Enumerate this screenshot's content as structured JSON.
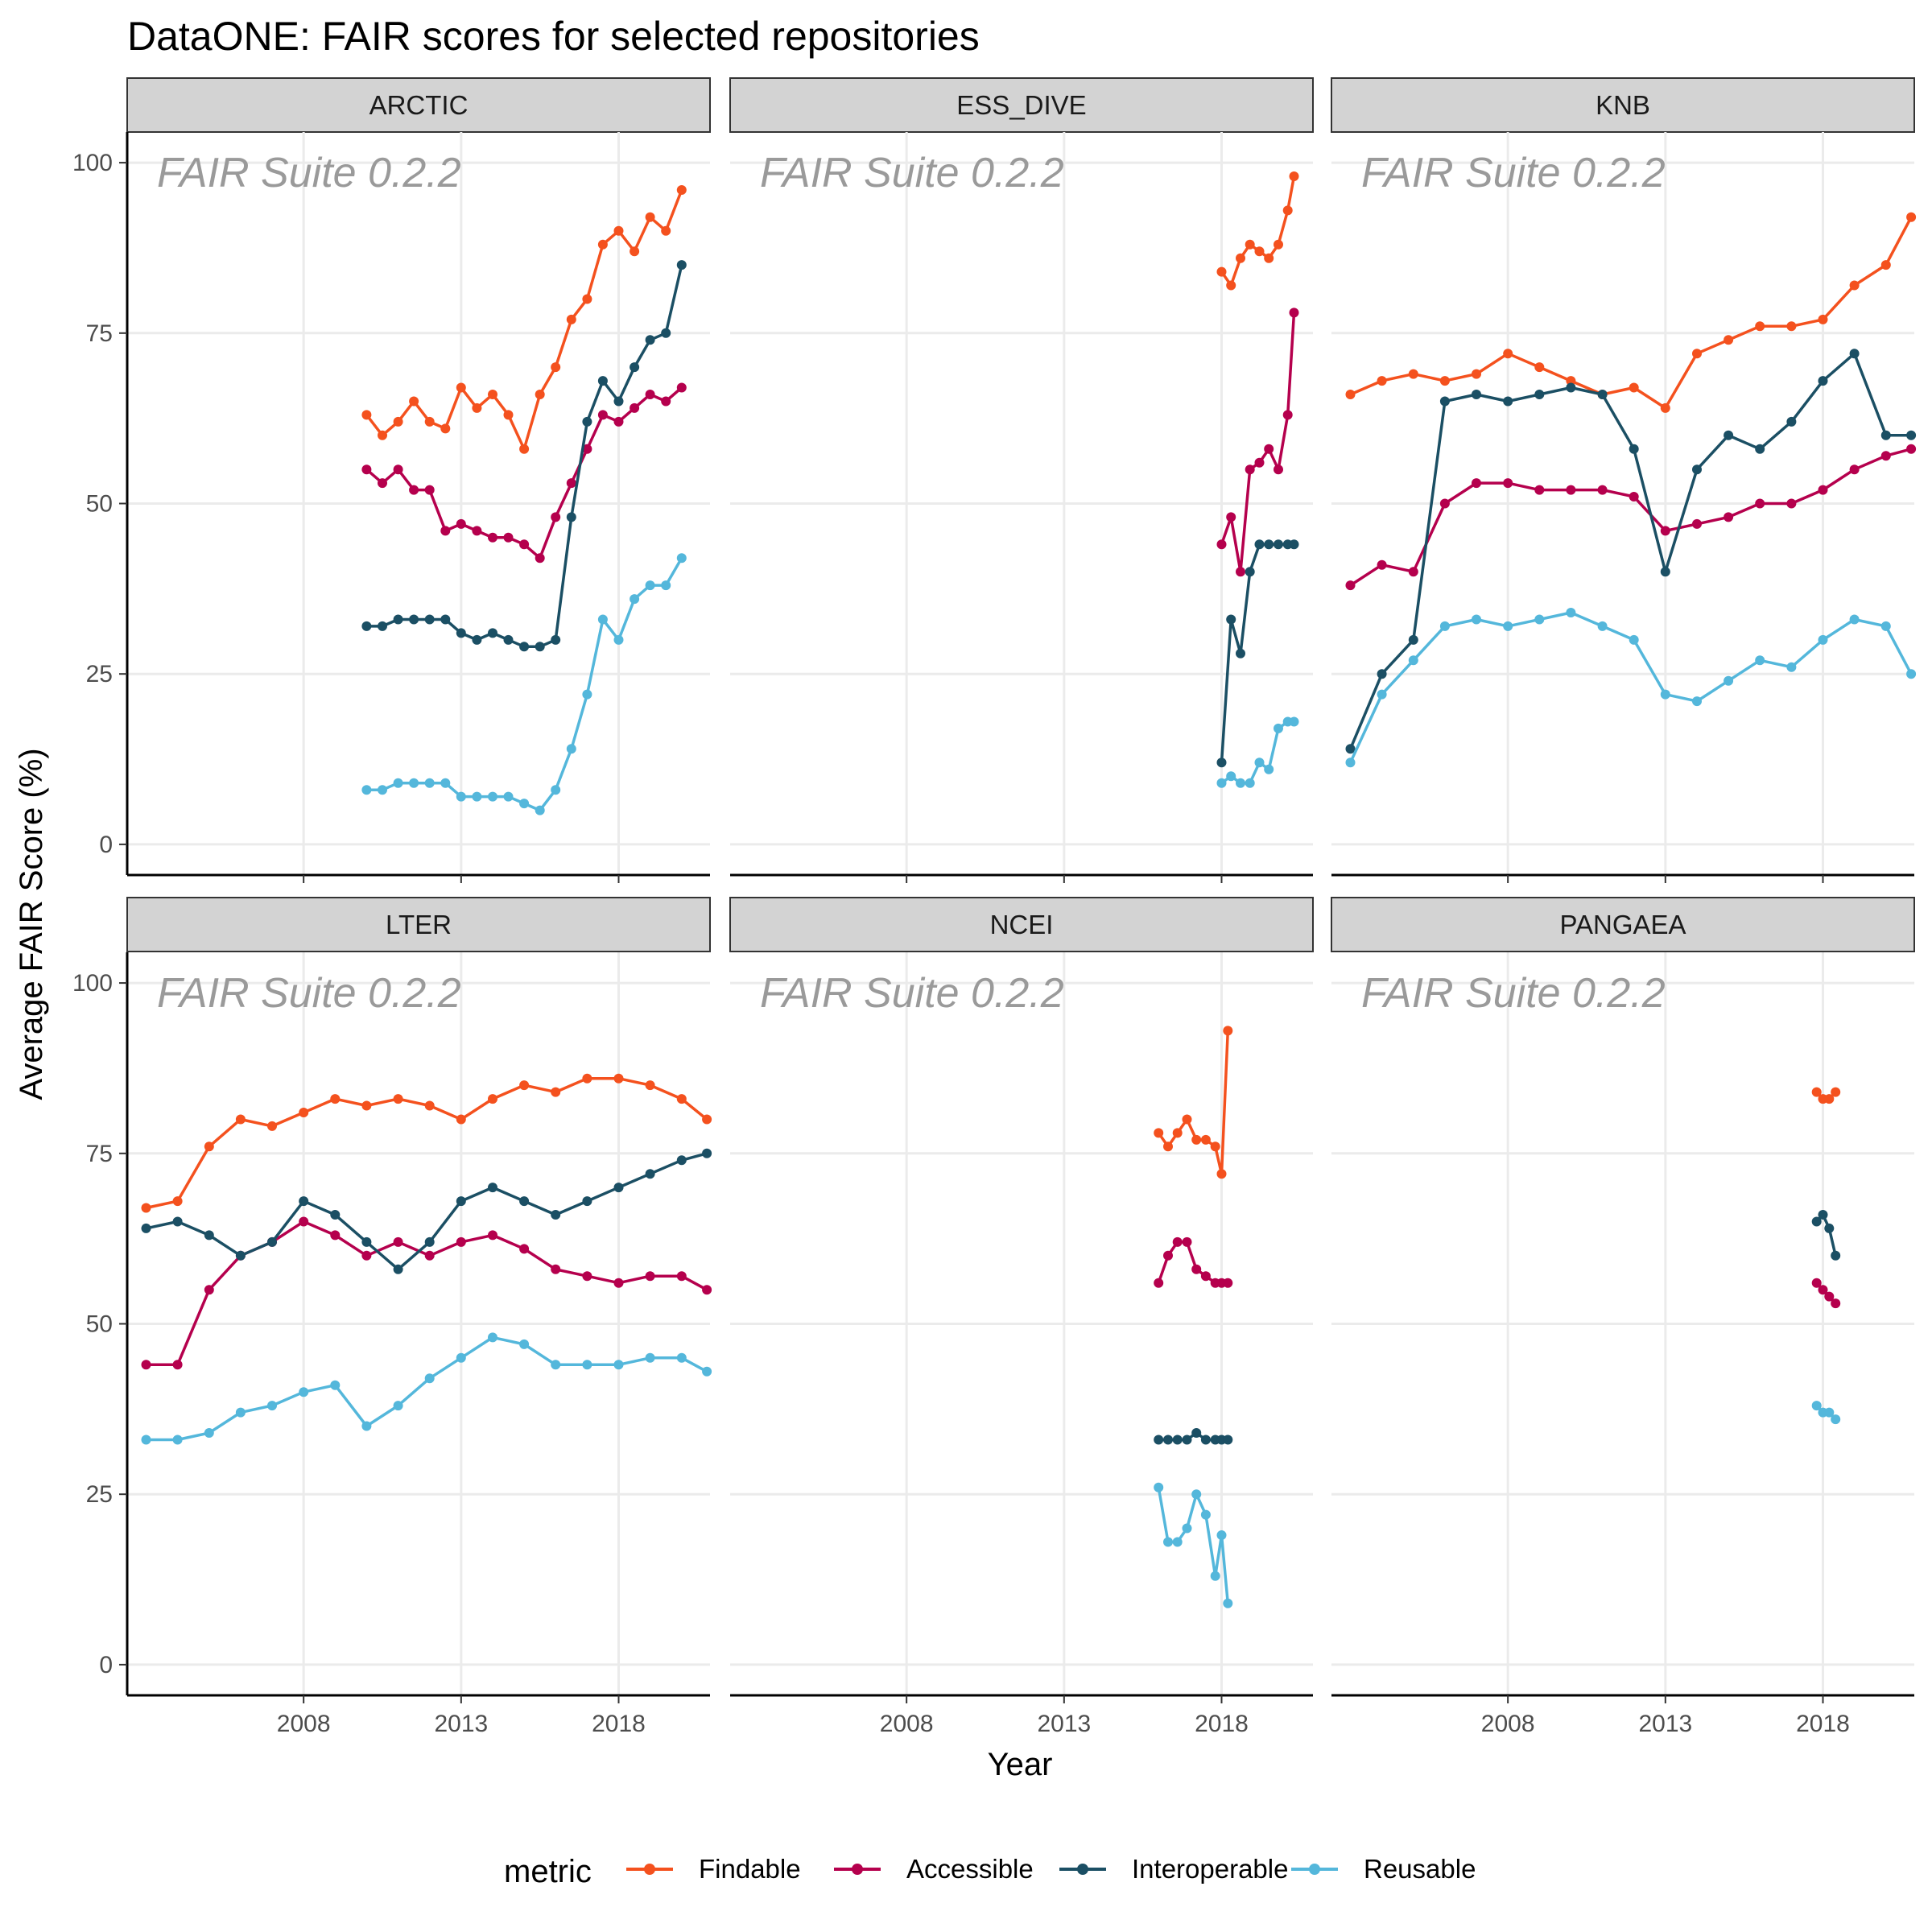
{
  "chart_data": {
    "type": "line",
    "title": "DataONE: FAIR scores for selected repositories",
    "xlabel": "Year",
    "ylabel": "Average FAIR Score (%)",
    "watermark": "FAIR Suite 0.2.2",
    "xlim": [
      2002.4,
      2020.9
    ],
    "ylim": [
      -4.5,
      104.5
    ],
    "x_ticks": [
      2008,
      2013,
      2018
    ],
    "x_tick_labels": [
      "2008",
      "2013",
      "2018"
    ],
    "y_ticks": [
      0,
      25,
      50,
      75,
      100
    ],
    "y_tick_labels": [
      "0",
      "25",
      "50",
      "75",
      "100"
    ],
    "grid": true,
    "markers": true,
    "legend": {
      "title": "metric",
      "position": "bottom",
      "entries": [
        "Findable",
        "Accessible",
        "Interoperable",
        "Reusable"
      ]
    },
    "metric_colors": {
      "Findable": "#f4511e",
      "Accessible": "#b5004d",
      "Interoperable": "#1b4f64",
      "Reusable": "#54b7db"
    },
    "panels": [
      {
        "name": "ARCTIC",
        "series": [
          {
            "name": "Findable",
            "x": [
              2010.0,
              2010.5,
              2011.0,
              2011.5,
              2012.0,
              2012.5,
              2013.0,
              2013.5,
              2014.0,
              2014.5,
              2015.0,
              2015.5,
              2016.0,
              2016.5,
              2017.0,
              2017.5,
              2018.0,
              2018.5,
              2019.0,
              2019.5,
              2020.0
            ],
            "y": [
              63,
              60,
              62,
              65,
              62,
              61,
              67,
              64,
              66,
              63,
              58,
              66,
              70,
              77,
              80,
              88,
              90,
              87,
              92,
              90,
              96
            ]
          },
          {
            "name": "Accessible",
            "x": [
              2010.0,
              2010.5,
              2011.0,
              2011.5,
              2012.0,
              2012.5,
              2013.0,
              2013.5,
              2014.0,
              2014.5,
              2015.0,
              2015.5,
              2016.0,
              2016.5,
              2017.0,
              2017.5,
              2018.0,
              2018.5,
              2019.0,
              2019.5,
              2020.0
            ],
            "y": [
              55,
              53,
              55,
              52,
              52,
              46,
              47,
              46,
              45,
              45,
              44,
              42,
              48,
              53,
              58,
              63,
              62,
              64,
              66,
              65,
              67
            ]
          },
          {
            "name": "Interoperable",
            "x": [
              2010.0,
              2010.5,
              2011.0,
              2011.5,
              2012.0,
              2012.5,
              2013.0,
              2013.5,
              2014.0,
              2014.5,
              2015.0,
              2015.5,
              2016.0,
              2016.5,
              2017.0,
              2017.5,
              2018.0,
              2018.5,
              2019.0,
              2019.5,
              2020.0
            ],
            "y": [
              32,
              32,
              33,
              33,
              33,
              33,
              31,
              30,
              31,
              30,
              29,
              29,
              30,
              48,
              62,
              68,
              65,
              70,
              74,
              75,
              85
            ]
          },
          {
            "name": "Reusable",
            "x": [
              2010.0,
              2010.5,
              2011.0,
              2011.5,
              2012.0,
              2012.5,
              2013.0,
              2013.5,
              2014.0,
              2014.5,
              2015.0,
              2015.5,
              2016.0,
              2016.5,
              2017.0,
              2017.5,
              2018.0,
              2018.5,
              2019.0,
              2019.5,
              2020.0
            ],
            "y": [
              8,
              8,
              9,
              9,
              9,
              9,
              7,
              7,
              7,
              7,
              6,
              5,
              8,
              14,
              22,
              33,
              30,
              36,
              38,
              38,
              42
            ]
          }
        ]
      },
      {
        "name": "ESS_DIVE",
        "series": [
          {
            "name": "Findable",
            "x": [
              2018.0,
              2018.3,
              2018.6,
              2018.9,
              2019.2,
              2019.5,
              2019.8,
              2020.1,
              2020.3
            ],
            "y": [
              84,
              82,
              86,
              88,
              87,
              86,
              88,
              93,
              98
            ]
          },
          {
            "name": "Accessible",
            "x": [
              2018.0,
              2018.3,
              2018.6,
              2018.9,
              2019.2,
              2019.5,
              2019.8,
              2020.1,
              2020.3
            ],
            "y": [
              44,
              48,
              40,
              55,
              56,
              58,
              55,
              63,
              78
            ]
          },
          {
            "name": "Interoperable",
            "x": [
              2018.0,
              2018.3,
              2018.6,
              2018.9,
              2019.2,
              2019.5,
              2019.8,
              2020.1,
              2020.3
            ],
            "y": [
              12,
              33,
              28,
              40,
              44,
              44,
              44,
              44,
              44
            ]
          },
          {
            "name": "Reusable",
            "x": [
              2018.0,
              2018.3,
              2018.6,
              2018.9,
              2019.2,
              2019.5,
              2019.8,
              2020.1,
              2020.3
            ],
            "y": [
              9,
              10,
              9,
              9,
              12,
              11,
              17,
              18,
              18
            ]
          }
        ]
      },
      {
        "name": "KNB",
        "series": [
          {
            "name": "Findable",
            "x": [
              2003.0,
              2004.0,
              2005.0,
              2006.0,
              2007.0,
              2008.0,
              2009.0,
              2010.0,
              2011.0,
              2012.0,
              2013.0,
              2014.0,
              2015.0,
              2016.0,
              2017.0,
              2018.0,
              2019.0,
              2020.0,
              2020.8
            ],
            "y": [
              66,
              68,
              69,
              68,
              69,
              72,
              70,
              68,
              66,
              67,
              64,
              72,
              74,
              76,
              76,
              77,
              82,
              85,
              92
            ]
          },
          {
            "name": "Accessible",
            "x": [
              2003.0,
              2004.0,
              2005.0,
              2006.0,
              2007.0,
              2008.0,
              2009.0,
              2010.0,
              2011.0,
              2012.0,
              2013.0,
              2014.0,
              2015.0,
              2016.0,
              2017.0,
              2018.0,
              2019.0,
              2020.0,
              2020.8
            ],
            "y": [
              38,
              41,
              40,
              50,
              53,
              53,
              52,
              52,
              52,
              51,
              46,
              47,
              48,
              50,
              50,
              52,
              55,
              57,
              58
            ]
          },
          {
            "name": "Interoperable",
            "x": [
              2003.0,
              2004.0,
              2005.0,
              2006.0,
              2007.0,
              2008.0,
              2009.0,
              2010.0,
              2011.0,
              2012.0,
              2013.0,
              2014.0,
              2015.0,
              2016.0,
              2017.0,
              2018.0,
              2019.0,
              2020.0,
              2020.8
            ],
            "y": [
              14,
              25,
              30,
              65,
              66,
              65,
              66,
              67,
              66,
              58,
              40,
              55,
              60,
              58,
              62,
              68,
              72,
              60,
              60
            ]
          },
          {
            "name": "Reusable",
            "x": [
              2003.0,
              2004.0,
              2005.0,
              2006.0,
              2007.0,
              2008.0,
              2009.0,
              2010.0,
              2011.0,
              2012.0,
              2013.0,
              2014.0,
              2015.0,
              2016.0,
              2017.0,
              2018.0,
              2019.0,
              2020.0,
              2020.8
            ],
            "y": [
              12,
              22,
              27,
              32,
              33,
              32,
              33,
              34,
              32,
              30,
              22,
              21,
              24,
              27,
              26,
              30,
              33,
              32,
              25
            ]
          }
        ]
      },
      {
        "name": "LTER",
        "series": [
          {
            "name": "Findable",
            "x": [
              2003.0,
              2004.0,
              2005.0,
              2006.0,
              2007.0,
              2008.0,
              2009.0,
              2010.0,
              2011.0,
              2012.0,
              2013.0,
              2014.0,
              2015.0,
              2016.0,
              2017.0,
              2018.0,
              2019.0,
              2020.0,
              2020.8
            ],
            "y": [
              67,
              68,
              76,
              80,
              79,
              81,
              83,
              82,
              83,
              82,
              80,
              83,
              85,
              84,
              86,
              86,
              85,
              83,
              80
            ]
          },
          {
            "name": "Accessible",
            "x": [
              2003.0,
              2004.0,
              2005.0,
              2006.0,
              2007.0,
              2008.0,
              2009.0,
              2010.0,
              2011.0,
              2012.0,
              2013.0,
              2014.0,
              2015.0,
              2016.0,
              2017.0,
              2018.0,
              2019.0,
              2020.0,
              2020.8
            ],
            "y": [
              44,
              44,
              55,
              60,
              62,
              65,
              63,
              60,
              62,
              60,
              62,
              63,
              61,
              58,
              57,
              56,
              57,
              57,
              55
            ]
          },
          {
            "name": "Interoperable",
            "x": [
              2003.0,
              2004.0,
              2005.0,
              2006.0,
              2007.0,
              2008.0,
              2009.0,
              2010.0,
              2011.0,
              2012.0,
              2013.0,
              2014.0,
              2015.0,
              2016.0,
              2017.0,
              2018.0,
              2019.0,
              2020.0,
              2020.8
            ],
            "y": [
              64,
              65,
              63,
              60,
              62,
              68,
              66,
              62,
              58,
              62,
              68,
              70,
              68,
              66,
              68,
              70,
              72,
              74,
              75
            ]
          },
          {
            "name": "Reusable",
            "x": [
              2003.0,
              2004.0,
              2005.0,
              2006.0,
              2007.0,
              2008.0,
              2009.0,
              2010.0,
              2011.0,
              2012.0,
              2013.0,
              2014.0,
              2015.0,
              2016.0,
              2017.0,
              2018.0,
              2019.0,
              2020.0,
              2020.8
            ],
            "y": [
              33,
              33,
              34,
              37,
              38,
              40,
              41,
              35,
              38,
              42,
              45,
              48,
              47,
              44,
              44,
              44,
              45,
              45,
              43
            ]
          }
        ]
      },
      {
        "name": "NCEI",
        "series": [
          {
            "name": "Findable",
            "x": [
              2016.0,
              2016.3,
              2016.6,
              2016.9,
              2017.2,
              2017.5,
              2017.8,
              2018.0,
              2018.2
            ],
            "y": [
              78,
              76,
              78,
              80,
              77,
              77,
              76,
              72,
              93
            ]
          },
          {
            "name": "Accessible",
            "x": [
              2016.0,
              2016.3,
              2016.6,
              2016.9,
              2017.2,
              2017.5,
              2017.8,
              2018.0,
              2018.2
            ],
            "y": [
              56,
              60,
              62,
              62,
              58,
              57,
              56,
              56,
              56
            ]
          },
          {
            "name": "Interoperable",
            "x": [
              2016.0,
              2016.3,
              2016.6,
              2016.9,
              2017.2,
              2017.5,
              2017.8,
              2018.0,
              2018.2
            ],
            "y": [
              33,
              33,
              33,
              33,
              34,
              33,
              33,
              33,
              33
            ]
          },
          {
            "name": "Reusable",
            "x": [
              2016.0,
              2016.3,
              2016.6,
              2016.9,
              2017.2,
              2017.5,
              2017.8,
              2018.0,
              2018.2
            ],
            "y": [
              26,
              18,
              18,
              20,
              25,
              22,
              13,
              19,
              9
            ]
          }
        ]
      },
      {
        "name": "PANGAEA",
        "series": [
          {
            "name": "Findable",
            "x": [
              2017.8,
              2018.0,
              2018.2,
              2018.4
            ],
            "y": [
              84,
              83,
              83,
              84
            ]
          },
          {
            "name": "Accessible",
            "x": [
              2017.8,
              2018.0,
              2018.2,
              2018.4
            ],
            "y": [
              56,
              55,
              54,
              53
            ]
          },
          {
            "name": "Interoperable",
            "x": [
              2017.8,
              2018.0,
              2018.2,
              2018.4
            ],
            "y": [
              65,
              66,
              64,
              60
            ]
          },
          {
            "name": "Reusable",
            "x": [
              2017.8,
              2018.0,
              2018.2,
              2018.4
            ],
            "y": [
              38,
              37,
              37,
              36
            ]
          }
        ]
      }
    ]
  }
}
